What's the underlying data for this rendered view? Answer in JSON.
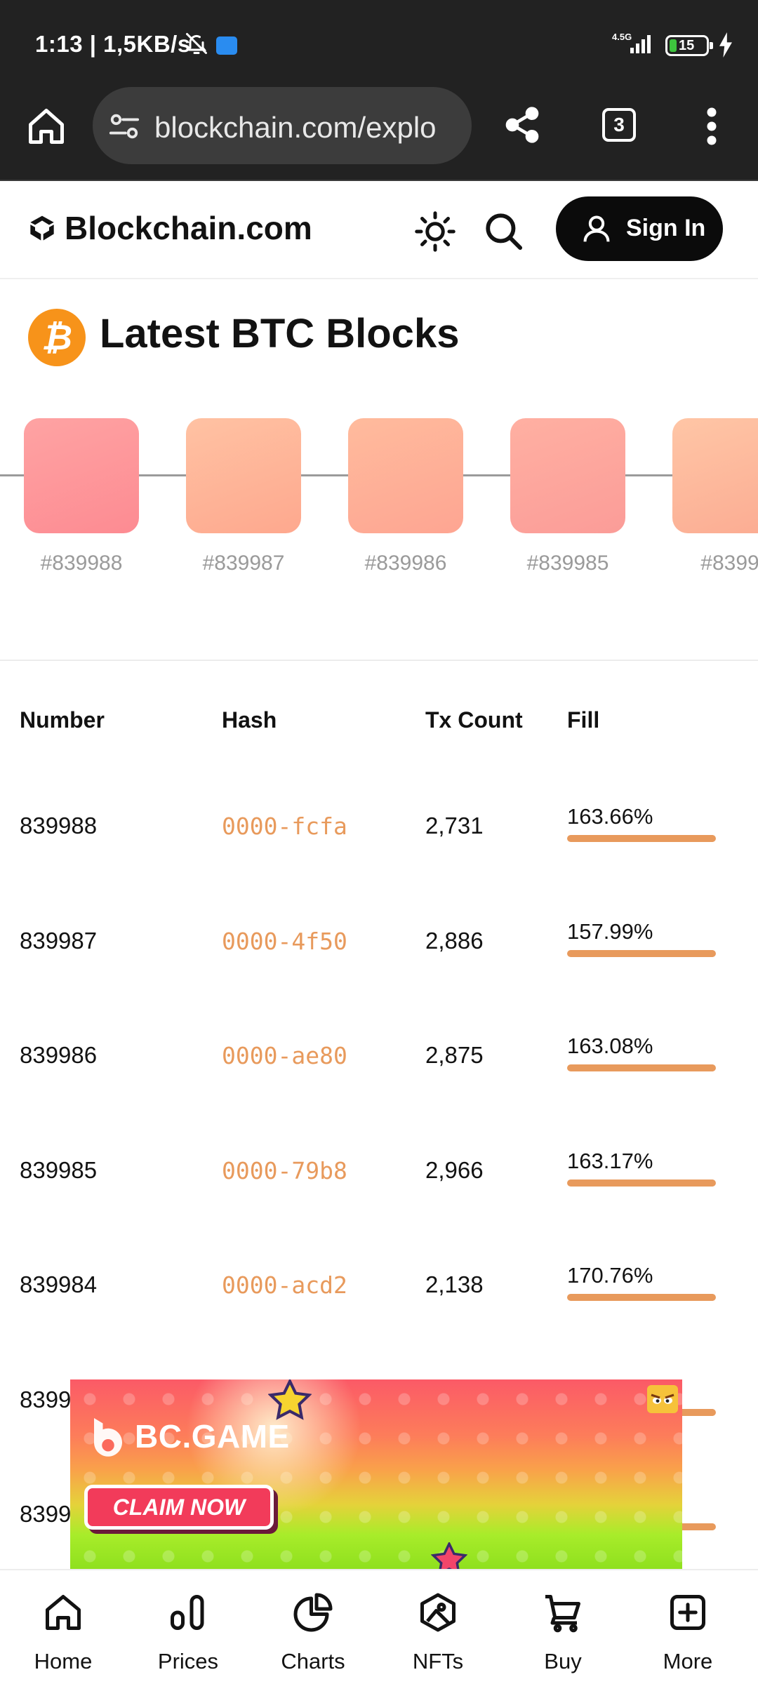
{
  "status_bar": {
    "time": "1:13",
    "separator": "|",
    "speed": "1,5KB/s",
    "network": "4.5G",
    "battery": "15"
  },
  "browser": {
    "url": "blockchain.com/explo",
    "tab_count": "3"
  },
  "header": {
    "brand": "Blockchain.com",
    "signin_label": "Sign In"
  },
  "section": {
    "title": "Latest BTC Blocks"
  },
  "blocks": [
    {
      "label": "#839988",
      "color_from": "#fea3a3",
      "color_to": "#fd8b92"
    },
    {
      "label": "#839987",
      "color_from": "#ffc2a3",
      "color_to": "#fea88e"
    },
    {
      "label": "#839986",
      "color_from": "#ffbb9d",
      "color_to": "#fea592"
    },
    {
      "label": "#839985",
      "color_from": "#ffb0a2",
      "color_to": "#fb9c98"
    },
    {
      "label": "#8399",
      "color_from": "#ffc6a6",
      "color_to": "#fbab92"
    }
  ],
  "table": {
    "headers": {
      "number": "Number",
      "hash": "Hash",
      "tx_count": "Tx Count",
      "fill": "Fill"
    },
    "rows": [
      {
        "number": "839988",
        "hash": "0000-fcfa",
        "tx_count": "2,731",
        "fill": "163.66%",
        "fill_ratio": 1.0
      },
      {
        "number": "839987",
        "hash": "0000-4f50",
        "tx_count": "2,886",
        "fill": "157.99%",
        "fill_ratio": 1.0
      },
      {
        "number": "839986",
        "hash": "0000-ae80",
        "tx_count": "2,875",
        "fill": "163.08%",
        "fill_ratio": 1.0
      },
      {
        "number": "839985",
        "hash": "0000-79b8",
        "tx_count": "2,966",
        "fill": "163.17%",
        "fill_ratio": 1.0
      },
      {
        "number": "839984",
        "hash": "0000-acd2",
        "tx_count": "2,138",
        "fill": "170.76%",
        "fill_ratio": 1.0
      },
      {
        "number": "8399",
        "hash": "",
        "tx_count": "",
        "fill": "",
        "fill_ratio": 1.0
      },
      {
        "number": "8399",
        "hash": "",
        "tx_count": "",
        "fill": "",
        "fill_ratio": 1.0
      }
    ]
  },
  "ad": {
    "brand": "BC.GAME",
    "cta": "CLAIM NOW"
  },
  "bottom_nav": [
    {
      "label": "Home",
      "icon": "home-icon"
    },
    {
      "label": "Prices",
      "icon": "bar-chart-icon"
    },
    {
      "label": "Charts",
      "icon": "pie-chart-icon"
    },
    {
      "label": "NFTs",
      "icon": "nft-icon"
    },
    {
      "label": "Buy",
      "icon": "cart-icon"
    },
    {
      "label": "More",
      "icon": "plus-square-icon"
    }
  ],
  "colors": {
    "accent": "#e89a5c",
    "btc": "#f7931a",
    "signin_bg": "#0b0b0b",
    "chrome_bg": "#222222"
  }
}
